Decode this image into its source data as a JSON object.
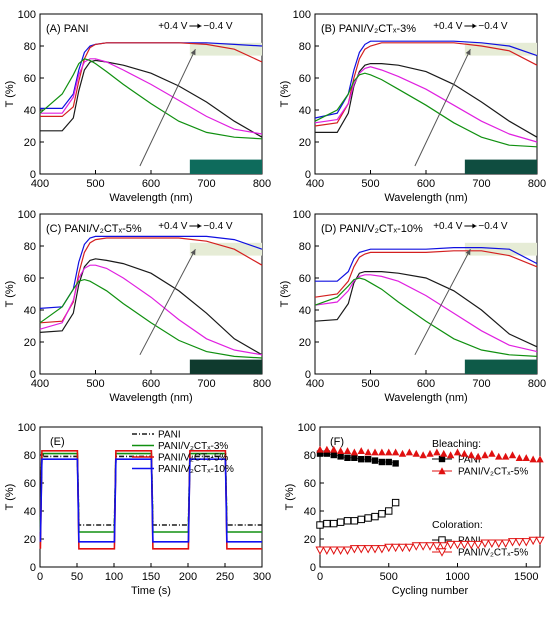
{
  "chart_data": [
    {
      "type": "line",
      "panel_label": "(A)",
      "title": "PANI",
      "xlabel": "Wavelength (nm)",
      "ylabel": "T (%)",
      "xlim": [
        400,
        800
      ],
      "ylim": [
        0,
        100
      ],
      "xticks": [
        400,
        500,
        600,
        700,
        800
      ],
      "yticks": [
        0,
        20,
        40,
        60,
        80,
        100
      ],
      "annotation": {
        "from": "+0.4 V",
        "to": "−0.4 V",
        "arrow_from": [
          580,
          5
        ],
        "arrow_to": [
          680,
          78
        ]
      },
      "swatches": {
        "top": "#e4ecd6",
        "bottom": "#0e6b5c"
      },
      "series": [
        {
          "color": "#1a1a1a",
          "x": [
            400,
            440,
            460,
            470,
            480,
            490,
            500,
            520,
            550,
            600,
            650,
            700,
            750,
            800
          ],
          "y": [
            27,
            27,
            35,
            52,
            65,
            70,
            71,
            70,
            68,
            63,
            55,
            45,
            33,
            23
          ]
        },
        {
          "color": "#1010e0",
          "x": [
            400,
            440,
            460,
            470,
            480,
            490,
            500,
            520,
            550,
            600,
            650,
            700,
            750,
            800
          ],
          "y": [
            41,
            41,
            50,
            65,
            76,
            80,
            81,
            82,
            82,
            82,
            82,
            82,
            81,
            80
          ]
        },
        {
          "color": "#d42020",
          "x": [
            400,
            440,
            460,
            470,
            480,
            490,
            500,
            520,
            550,
            600,
            650,
            700,
            750,
            800
          ],
          "y": [
            36,
            36,
            42,
            58,
            72,
            79,
            81,
            82,
            82,
            82,
            82,
            81,
            78,
            70
          ]
        },
        {
          "color": "#e020e0",
          "x": [
            400,
            440,
            460,
            470,
            480,
            490,
            500,
            520,
            550,
            600,
            650,
            700,
            750,
            800
          ],
          "y": [
            38,
            38,
            48,
            62,
            70,
            72,
            72,
            70,
            65,
            56,
            46,
            36,
            28,
            25
          ]
        },
        {
          "color": "#109010",
          "x": [
            400,
            440,
            460,
            470,
            480,
            490,
            500,
            520,
            550,
            600,
            650,
            700,
            750,
            800
          ],
          "y": [
            38,
            50,
            62,
            69,
            72,
            71,
            69,
            64,
            56,
            44,
            33,
            26,
            23,
            22
          ]
        }
      ]
    },
    {
      "type": "line",
      "panel_label": "(B)",
      "title": "PANI/V₂CTₓ-3%",
      "xlabel": "Wavelength (nm)",
      "ylabel": "T (%)",
      "xlim": [
        400,
        800
      ],
      "ylim": [
        0,
        100
      ],
      "xticks": [
        400,
        500,
        600,
        700,
        800
      ],
      "yticks": [
        0,
        20,
        40,
        60,
        80,
        100
      ],
      "annotation": {
        "from": "+0.4 V",
        "to": "−0.4 V",
        "arrow_from": [
          580,
          5
        ],
        "arrow_to": [
          680,
          78
        ]
      },
      "swatches": {
        "top": "#e6ecd6",
        "bottom": "#0f4d40"
      },
      "series": [
        {
          "color": "#1a1a1a",
          "x": [
            400,
            440,
            460,
            470,
            480,
            490,
            500,
            520,
            550,
            600,
            650,
            700,
            750,
            800
          ],
          "y": [
            26,
            26,
            38,
            55,
            64,
            68,
            69,
            69,
            68,
            64,
            56,
            45,
            33,
            23
          ]
        },
        {
          "color": "#1010e0",
          "x": [
            400,
            440,
            460,
            470,
            480,
            490,
            500,
            520,
            550,
            600,
            650,
            700,
            750,
            800
          ],
          "y": [
            35,
            38,
            50,
            65,
            76,
            81,
            83,
            83,
            83,
            83,
            83,
            82,
            80,
            74
          ]
        },
        {
          "color": "#d42020",
          "x": [
            400,
            440,
            460,
            470,
            480,
            490,
            500,
            520,
            550,
            600,
            650,
            700,
            750,
            800
          ],
          "y": [
            30,
            32,
            44,
            60,
            72,
            78,
            80,
            82,
            82,
            82,
            82,
            80,
            77,
            68
          ]
        },
        {
          "color": "#e020e0",
          "x": [
            400,
            440,
            460,
            470,
            480,
            490,
            500,
            520,
            550,
            600,
            650,
            700,
            750,
            800
          ],
          "y": [
            32,
            34,
            44,
            56,
            63,
            66,
            67,
            65,
            61,
            53,
            43,
            33,
            25,
            20
          ]
        },
        {
          "color": "#109010",
          "x": [
            400,
            440,
            460,
            470,
            480,
            490,
            500,
            520,
            550,
            600,
            650,
            700,
            750,
            800
          ],
          "y": [
            33,
            40,
            50,
            58,
            62,
            63,
            62,
            59,
            53,
            43,
            32,
            23,
            18,
            17
          ]
        }
      ]
    },
    {
      "type": "line",
      "panel_label": "(C)",
      "title": "PANI/V₂CTₓ-5%",
      "xlabel": "Wavelength (nm)",
      "ylabel": "T (%)",
      "xlim": [
        400,
        800
      ],
      "ylim": [
        0,
        100
      ],
      "xticks": [
        400,
        500,
        600,
        700,
        800
      ],
      "yticks": [
        0,
        20,
        40,
        60,
        80,
        100
      ],
      "annotation": {
        "from": "+0.4 V",
        "to": "−0.4 V",
        "arrow_from": [
          580,
          12
        ],
        "arrow_to": [
          680,
          78
        ]
      },
      "swatches": {
        "top": "#e6ecd6",
        "bottom": "#0f3a2e"
      },
      "series": [
        {
          "color": "#1a1a1a",
          "x": [
            400,
            440,
            460,
            470,
            480,
            490,
            500,
            520,
            550,
            600,
            650,
            700,
            750,
            800
          ],
          "y": [
            26,
            27,
            38,
            56,
            67,
            71,
            72,
            71,
            69,
            63,
            52,
            38,
            22,
            12
          ]
        },
        {
          "color": "#1010e0",
          "x": [
            400,
            440,
            460,
            470,
            480,
            490,
            500,
            520,
            550,
            600,
            650,
            700,
            750,
            800
          ],
          "y": [
            41,
            42,
            53,
            70,
            81,
            85,
            86,
            86,
            86,
            86,
            86,
            86,
            84,
            78
          ]
        },
        {
          "color": "#d42020",
          "x": [
            400,
            440,
            460,
            470,
            480,
            490,
            500,
            520,
            550,
            600,
            650,
            700,
            750,
            800
          ],
          "y": [
            32,
            33,
            45,
            63,
            76,
            82,
            84,
            85,
            85,
            85,
            85,
            83,
            78,
            68
          ]
        },
        {
          "color": "#e020e0",
          "x": [
            400,
            440,
            460,
            470,
            480,
            490,
            500,
            520,
            550,
            600,
            650,
            700,
            750,
            800
          ],
          "y": [
            28,
            32,
            46,
            60,
            66,
            68,
            68,
            66,
            60,
            48,
            34,
            22,
            15,
            12
          ]
        },
        {
          "color": "#109010",
          "x": [
            400,
            440,
            460,
            470,
            480,
            490,
            500,
            520,
            550,
            600,
            650,
            700,
            750,
            800
          ],
          "y": [
            32,
            42,
            53,
            58,
            59,
            58,
            56,
            52,
            44,
            32,
            21,
            14,
            11,
            10
          ]
        }
      ]
    },
    {
      "type": "line",
      "panel_label": "(D)",
      "title": "PANI/V₂CTₓ-10%",
      "xlabel": "Wavelength (nm)",
      "ylabel": "T (%)",
      "xlim": [
        400,
        800
      ],
      "ylim": [
        0,
        100
      ],
      "xticks": [
        400,
        500,
        600,
        700,
        800
      ],
      "yticks": [
        0,
        20,
        40,
        60,
        80,
        100
      ],
      "annotation": {
        "from": "+0.4 V",
        "to": "−0.4 V",
        "arrow_from": [
          580,
          12
        ],
        "arrow_to": [
          680,
          78
        ]
      },
      "swatches": {
        "top": "#e6ecd6",
        "bottom": "#0e5a48"
      },
      "series": [
        {
          "color": "#1a1a1a",
          "x": [
            400,
            440,
            460,
            470,
            480,
            490,
            500,
            520,
            550,
            600,
            650,
            700,
            750,
            800
          ],
          "y": [
            33,
            34,
            44,
            57,
            63,
            64,
            64,
            64,
            63,
            60,
            52,
            40,
            25,
            17
          ]
        },
        {
          "color": "#1010e0",
          "x": [
            400,
            440,
            460,
            470,
            480,
            490,
            500,
            520,
            550,
            600,
            650,
            700,
            750,
            800
          ],
          "y": [
            58,
            58,
            64,
            72,
            76,
            77,
            78,
            78,
            78,
            78,
            79,
            79,
            78,
            69
          ]
        },
        {
          "color": "#d42020",
          "x": [
            400,
            440,
            460,
            470,
            480,
            490,
            500,
            520,
            550,
            600,
            650,
            700,
            750,
            800
          ],
          "y": [
            48,
            50,
            58,
            67,
            73,
            75,
            76,
            76,
            76,
            76,
            77,
            77,
            74,
            67
          ]
        },
        {
          "color": "#e020e0",
          "x": [
            400,
            440,
            460,
            470,
            480,
            490,
            500,
            520,
            550,
            600,
            650,
            700,
            750,
            800
          ],
          "y": [
            43,
            45,
            52,
            58,
            61,
            62,
            62,
            61,
            58,
            49,
            38,
            27,
            18,
            14
          ]
        },
        {
          "color": "#109010",
          "x": [
            400,
            440,
            460,
            470,
            480,
            490,
            500,
            520,
            550,
            600,
            650,
            700,
            750,
            800
          ],
          "y": [
            43,
            48,
            55,
            59,
            60,
            59,
            57,
            53,
            45,
            33,
            22,
            15,
            12,
            11
          ]
        }
      ]
    },
    {
      "type": "line",
      "panel_label": "(E)",
      "xlabel": "Time (s)",
      "ylabel": "T (%)",
      "xlim": [
        0,
        300
      ],
      "ylim": [
        0,
        100
      ],
      "xticks": [
        0,
        50,
        100,
        150,
        200,
        250,
        300
      ],
      "yticks": [
        0,
        20,
        40,
        60,
        80,
        100
      ],
      "legend_position": "top-right",
      "series": [
        {
          "name": "PANI",
          "color": "#1a1a1a",
          "dash": "5,2,1,2",
          "high": 79,
          "low": 30
        },
        {
          "name": "PANI/V₂CTₓ-3%",
          "color": "#109010",
          "dash": "",
          "high": 81,
          "low": 25
        },
        {
          "name": "PANI/V₂CTₓ-5%",
          "color": "#e01010",
          "dash": "",
          "high": 83,
          "low": 13
        },
        {
          "name": "PANI/V₂CTₓ-10%",
          "color": "#1010f0",
          "dash": "",
          "high": 77,
          "low": 18
        }
      ],
      "switch_times": [
        0,
        50,
        100,
        150,
        200,
        250,
        300
      ]
    },
    {
      "type": "scatter",
      "panel_label": "(F)",
      "xlabel": "Cycling number",
      "ylabel": "T (%)",
      "xlim": [
        0,
        1600
      ],
      "ylim": [
        0,
        100
      ],
      "xticks": [
        0,
        500,
        1000,
        1500
      ],
      "yticks": [
        0,
        20,
        40,
        60,
        80,
        100
      ],
      "legend_groups": [
        "Bleaching:",
        "Coloration:"
      ],
      "series": [
        {
          "name": "PANI",
          "group": "Bleaching:",
          "marker": "square-filled",
          "color": "#000000",
          "x": [
            0,
            50,
            100,
            150,
            200,
            250,
            300,
            350,
            400,
            450,
            500,
            550
          ],
          "y": [
            81,
            81,
            80,
            79,
            78,
            78,
            77,
            77,
            76,
            75,
            75,
            74
          ]
        },
        {
          "name": "PANI/V₂CTₓ-5%",
          "group": "Bleaching:",
          "marker": "triangle-up-filled",
          "color": "#e01010",
          "x": [
            0,
            50,
            100,
            150,
            200,
            250,
            300,
            350,
            400,
            450,
            500,
            550,
            600,
            650,
            700,
            750,
            800,
            850,
            900,
            950,
            1000,
            1050,
            1100,
            1150,
            1200,
            1250,
            1300,
            1350,
            1400,
            1450,
            1500,
            1550,
            1600
          ],
          "y": [
            84,
            84,
            84,
            83,
            83,
            82,
            83,
            82,
            82,
            82,
            82,
            82,
            81,
            82,
            81,
            80,
            81,
            82,
            81,
            80,
            82,
            81,
            80,
            79,
            80,
            81,
            79,
            79,
            80,
            78,
            78,
            77,
            77
          ]
        },
        {
          "name": "PANI",
          "group": "Coloration:",
          "marker": "square-open",
          "color": "#000000",
          "x": [
            0,
            50,
            100,
            150,
            200,
            250,
            300,
            350,
            400,
            450,
            500,
            550
          ],
          "y": [
            30,
            31,
            31,
            32,
            33,
            33,
            34,
            35,
            36,
            38,
            40,
            46
          ]
        },
        {
          "name": "PANI/V₂CTₓ-5%",
          "group": "Coloration:",
          "marker": "triangle-down-open",
          "color": "#e01010",
          "x": [
            0,
            50,
            100,
            150,
            200,
            250,
            300,
            350,
            400,
            450,
            500,
            550,
            600,
            650,
            700,
            750,
            800,
            850,
            900,
            950,
            1000,
            1050,
            1100,
            1150,
            1200,
            1250,
            1300,
            1350,
            1400,
            1450,
            1500,
            1550,
            1600
          ],
          "y": [
            12,
            12,
            12,
            12,
            12,
            13,
            13,
            13,
            13,
            13,
            14,
            14,
            14,
            14,
            15,
            15,
            15,
            15,
            15,
            16,
            16,
            16,
            16,
            16,
            17,
            17,
            17,
            17,
            18,
            18,
            18,
            19,
            19
          ]
        }
      ]
    }
  ]
}
